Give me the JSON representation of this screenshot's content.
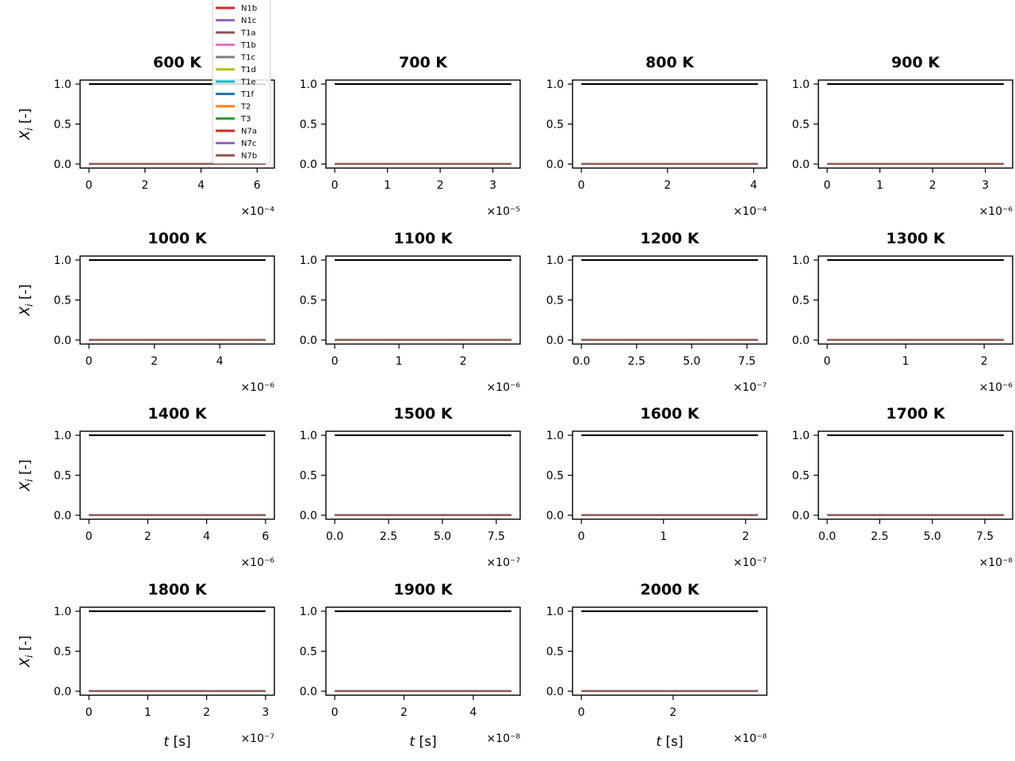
{
  "chart_data": {
    "type": "line",
    "layout": {
      "rows": 4,
      "cols": 4
    },
    "ylabel": "X_i [-]",
    "xlabel": "t [s]",
    "ylim": [
      0,
      1.0
    ],
    "yticks": [
      "0.0",
      "0.5",
      "1.0"
    ],
    "legend": {
      "placement": "top, above first panel",
      "entries": [
        {
          "name": "N1b",
          "color": "#d62728"
        },
        {
          "name": "N1c",
          "color": "#9467bd"
        },
        {
          "name": "T1a",
          "color": "#8c564b"
        },
        {
          "name": "T1b",
          "color": "#e377c2"
        },
        {
          "name": "T1c",
          "color": "#7f7f7f"
        },
        {
          "name": "T1d",
          "color": "#bcbd22"
        },
        {
          "name": "T1e",
          "color": "#17becf"
        },
        {
          "name": "T1f",
          "color": "#1f77b4"
        },
        {
          "name": "T2",
          "color": "#ff7f0e"
        },
        {
          "name": "T3",
          "color": "#2ca02c"
        },
        {
          "name": "N7a",
          "color": "#d62728"
        },
        {
          "name": "N7c",
          "color": "#9467bd"
        },
        {
          "name": "N7b",
          "color": "#8c564b"
        }
      ]
    },
    "panels": [
      {
        "title": "600 K",
        "xmax": 6.3,
        "xticks": [
          0,
          2,
          4,
          6
        ],
        "ticklabels": [
          "0",
          "2",
          "4",
          "6"
        ],
        "offset": "×10⁻⁴"
      },
      {
        "title": "700 K",
        "xmax": 3.35,
        "xticks": [
          0,
          1,
          2,
          3
        ],
        "ticklabels": [
          "0",
          "1",
          "2",
          "3"
        ],
        "offset": "×10⁻⁵"
      },
      {
        "title": "800 K",
        "xmax": 4.1,
        "xticks": [
          0,
          2,
          4
        ],
        "ticklabels": [
          "0",
          "2",
          "4"
        ],
        "offset": "×10⁻⁴"
      },
      {
        "title": "900 K",
        "xmax": 3.35,
        "xticks": [
          0,
          1,
          2,
          3
        ],
        "ticklabels": [
          "0",
          "1",
          "2",
          "3"
        ],
        "offset": "×10⁻⁶"
      },
      {
        "title": "1000 K",
        "xmax": 5.4,
        "xticks": [
          0,
          2,
          4
        ],
        "ticklabels": [
          "0",
          "2",
          "4"
        ],
        "offset": "×10⁻⁶"
      },
      {
        "title": "1100 K",
        "xmax": 2.75,
        "xticks": [
          0,
          1,
          2
        ],
        "ticklabels": [
          "0",
          "1",
          "2"
        ],
        "offset": "×10⁻⁶"
      },
      {
        "title": "1200 K",
        "xmax": 8.0,
        "xticks": [
          0,
          2.5,
          5,
          7.5
        ],
        "ticklabels": [
          "0.0",
          "2.5",
          "5.0",
          "7.5"
        ],
        "offset": "×10⁻⁷"
      },
      {
        "title": "1300 K",
        "xmax": 2.25,
        "xticks": [
          0,
          1,
          2
        ],
        "ticklabels": [
          "0",
          "1",
          "2"
        ],
        "offset": "×10⁻⁶"
      },
      {
        "title": "1400 K",
        "xmax": 6.0,
        "xticks": [
          0,
          2,
          4,
          6
        ],
        "ticklabels": [
          "0",
          "2",
          "4",
          "6"
        ],
        "offset": "×10⁻⁶"
      },
      {
        "title": "1500 K",
        "xmax": 8.2,
        "xticks": [
          0,
          2.5,
          5,
          7.5
        ],
        "ticklabels": [
          "0.0",
          "2.5",
          "5.0",
          "7.5"
        ],
        "offset": "×10⁻⁷"
      },
      {
        "title": "1600 K",
        "xmax": 2.15,
        "xticks": [
          0,
          1,
          2
        ],
        "ticklabels": [
          "0",
          "1",
          "2"
        ],
        "offset": "×10⁻⁷"
      },
      {
        "title": "1700 K",
        "xmax": 8.4,
        "xticks": [
          0,
          2.5,
          5,
          7.5
        ],
        "ticklabels": [
          "0.0",
          "2.5",
          "5.0",
          "7.5"
        ],
        "offset": "×10⁻⁸"
      },
      {
        "title": "1800 K",
        "xmax": 3.0,
        "xticks": [
          0,
          1,
          2,
          3
        ],
        "ticklabels": [
          "0",
          "1",
          "2",
          "3"
        ],
        "offset": "×10⁻⁷"
      },
      {
        "title": "1900 K",
        "xmax": 5.1,
        "xticks": [
          0,
          2,
          4
        ],
        "ticklabels": [
          "0",
          "2",
          "4"
        ],
        "offset": "×10⁻⁸"
      },
      {
        "title": "2000 K",
        "xmax": 3.85,
        "xticks": [
          0,
          2
        ],
        "ticklabels": [
          "0",
          "2"
        ],
        "offset": "×10⁻⁸"
      }
    ],
    "series_values": {
      "black_line": 1.0,
      "all_legend_series": 0.0
    }
  }
}
